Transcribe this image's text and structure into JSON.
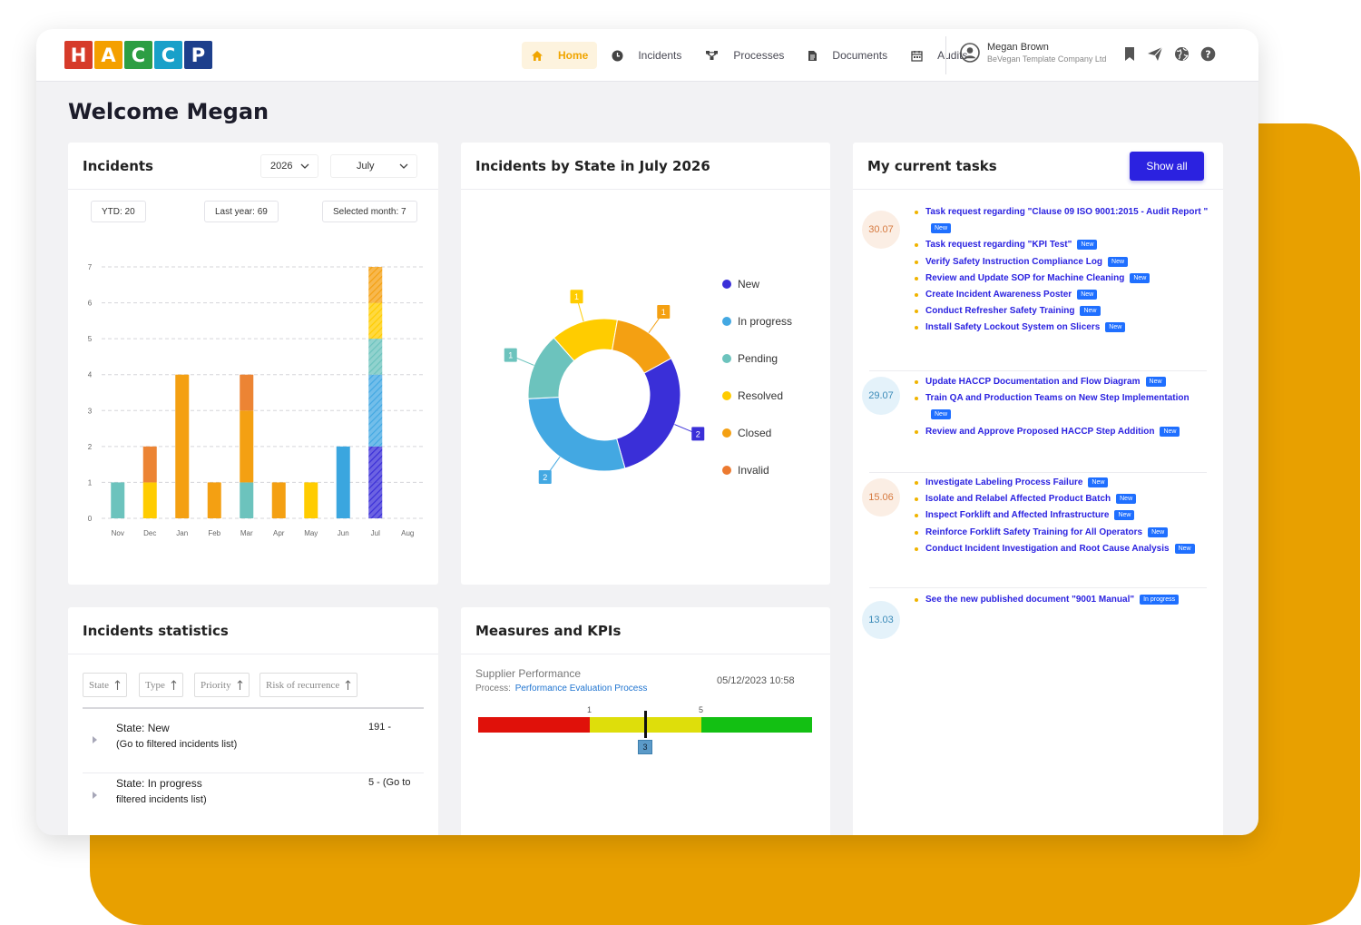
{
  "app": {
    "logo_letters": [
      {
        "letter": "H",
        "color": "#d63b2a"
      },
      {
        "letter": "A",
        "color": "#f4a000"
      },
      {
        "letter": "C",
        "color": "#2d9e43"
      },
      {
        "letter": "C",
        "color": "#19a0c9"
      },
      {
        "letter": "P",
        "color": "#1d3f8c"
      }
    ]
  },
  "nav": {
    "items": [
      {
        "label": "Home",
        "icon": "home-icon",
        "active": true
      },
      {
        "label": "Incidents",
        "icon": "clock-icon",
        "active": false
      },
      {
        "label": "Processes",
        "icon": "process-icon",
        "active": false
      },
      {
        "label": "Documents",
        "icon": "document-icon",
        "active": false
      },
      {
        "label": "Audits",
        "icon": "calendar-icon",
        "active": false
      }
    ]
  },
  "user": {
    "name": "Megan Brown",
    "company": "BeVegan Template Company Ltd",
    "icons": [
      "bookmark-icon",
      "send-icon",
      "globe-icon",
      "help-icon"
    ]
  },
  "welcome": "Welcome Megan",
  "incidents_card": {
    "title": "Incidents",
    "year": "2026",
    "month": "July",
    "ytd": "YTD: 20",
    "last_year": "Last year: 69",
    "selected_month": "Selected month: 7"
  },
  "donut_card": {
    "title": "Incidents by State in July 2026"
  },
  "tasks_card": {
    "title": "My current tasks",
    "show_all": "Show all",
    "groups": [
      {
        "date": "30.07",
        "color": "#fbeee4",
        "text_color": "#d67a40",
        "tasks": [
          {
            "text": "Task request regarding \"Clause 09 ISO 9001:2015 - Audit Report \"",
            "badge": "New"
          },
          {
            "text": "Task request regarding \"KPI Test\"",
            "badge": "New"
          },
          {
            "text": "Verify Safety Instruction Compliance Log",
            "badge": "New"
          },
          {
            "text": "Review and Update SOP for Machine Cleaning",
            "badge": "New"
          },
          {
            "text": "Create Incident Awareness Poster",
            "badge": "New"
          },
          {
            "text": "Conduct Refresher Safety Training",
            "badge": "New"
          },
          {
            "text": "Install Safety Lockout System on Slicers",
            "badge": "New"
          }
        ]
      },
      {
        "date": "29.07",
        "color": "#e4f2fa",
        "text_color": "#3a8ab8",
        "tasks": [
          {
            "text": "Update HACCP Documentation and Flow Diagram",
            "badge": "New"
          },
          {
            "text": "Train QA and Production Teams on New Step Implementation",
            "badge": "New"
          },
          {
            "text": "Review and Approve Proposed HACCP Step Addition",
            "badge": "New"
          }
        ]
      },
      {
        "date": "15.06",
        "color": "#fbeee4",
        "text_color": "#d67a40",
        "tasks": [
          {
            "text": "Investigate Labeling Process Failure",
            "badge": "New"
          },
          {
            "text": "Isolate and Relabel Affected Product Batch",
            "badge": "New"
          },
          {
            "text": "Inspect Forklift and Affected Infrastructure",
            "badge": "New"
          },
          {
            "text": "Reinforce Forklift Safety Training for All Operators",
            "badge": "New"
          },
          {
            "text": "Conduct Incident Investigation and Root Cause Analysis",
            "badge": "New"
          }
        ]
      },
      {
        "date": "13.03",
        "color": "#e4f2fa",
        "text_color": "#3a8ab8",
        "tasks": [
          {
            "text": "See the new published document \"9001 Manual\"",
            "badge": "In progress"
          }
        ]
      }
    ]
  },
  "stats_card": {
    "title": "Incidents statistics",
    "sort_chips": [
      "State",
      "Type",
      "Priority",
      "Risk of recurrence"
    ],
    "rows": [
      {
        "line1": "State: New",
        "line2": "(Go to filtered incidents list)",
        "value": "191 -"
      },
      {
        "line1": "State: In progress",
        "line2": "filtered incidents list)",
        "value": "5 - (Go to"
      }
    ]
  },
  "kpi_card": {
    "title": "Measures and KPIs",
    "name": "Supplier Performance",
    "process_label": "Process:",
    "process_link": "Performance Evaluation Process",
    "timestamp": "05/12/2023 10:58",
    "mark_low": "1",
    "mark_high": "5",
    "value": "3",
    "scale_min": 0,
    "scale_max": 6,
    "colors": [
      "#e0110a",
      "#dede0b",
      "#13c013"
    ]
  },
  "chart_data": [
    {
      "type": "bar",
      "stacked": true,
      "categories": [
        "Nov",
        "Dec",
        "Jan",
        "Feb",
        "Mar",
        "Apr",
        "May",
        "Jun",
        "Jul",
        "Aug"
      ],
      "ylim": [
        0,
        7
      ],
      "yticks": [
        0,
        1,
        2,
        3,
        4,
        5,
        6,
        7
      ],
      "grid": true,
      "series": [
        {
          "color": "#6cc3bd",
          "values": [
            1,
            0,
            0,
            0,
            1,
            0,
            0,
            0,
            0,
            0
          ]
        },
        {
          "color": "#ffcc00",
          "values": [
            0,
            1,
            0,
            0,
            0,
            0,
            1,
            0,
            0,
            0
          ]
        },
        {
          "color": "#f4a012",
          "values": [
            0,
            0,
            4,
            1,
            2,
            1,
            0,
            0,
            0,
            0
          ]
        },
        {
          "color": "#ec8434",
          "values": [
            0,
            1,
            0,
            0,
            1,
            0,
            0,
            0,
            0,
            0
          ]
        },
        {
          "color": "#3aa6df",
          "values": [
            0,
            0,
            0,
            0,
            0,
            0,
            0,
            2,
            0,
            0
          ]
        }
      ],
      "highlight": {
        "category": "Jul",
        "segments": [
          {
            "color": "#3a2fd8",
            "value": 2
          },
          {
            "color": "#43a8e2",
            "value": 2
          },
          {
            "color": "#6cc3bd",
            "value": 1
          },
          {
            "color": "#ffcc00",
            "value": 1
          },
          {
            "color": "#f4a012",
            "value": 1
          }
        ]
      }
    },
    {
      "type": "pie",
      "donut": true,
      "legend_placement": "right",
      "slices": [
        {
          "label": "New",
          "value": 2,
          "color": "#3a2fd8"
        },
        {
          "label": "In progress",
          "value": 2,
          "color": "#43a8e2"
        },
        {
          "label": "Pending",
          "value": 1,
          "color": "#6cc3bd"
        },
        {
          "label": "Resolved",
          "value": 1,
          "color": "#ffcc00"
        },
        {
          "label": "Closed",
          "value": 1,
          "color": "#f4a012"
        },
        {
          "label": "Invalid",
          "value": 0,
          "color": "#ec7a30"
        }
      ]
    }
  ]
}
